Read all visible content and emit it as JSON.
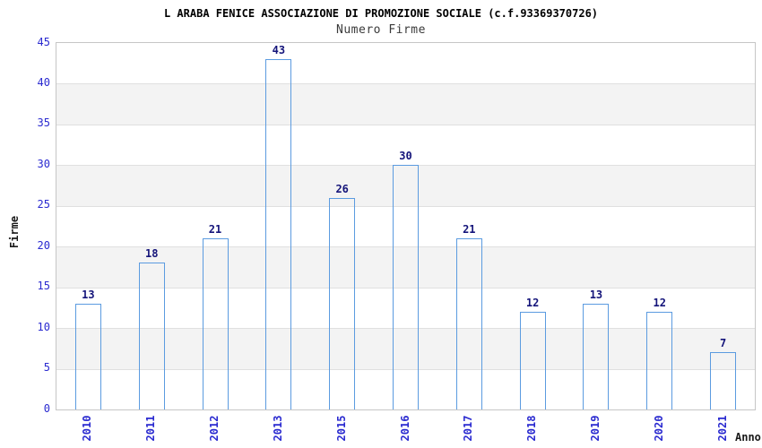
{
  "page": {
    "background": "#ffffff"
  },
  "chart_data": {
    "type": "bar",
    "title": "L ARABA FENICE ASSOCIAZIONE DI PROMOZIONE SOCIALE (c.f.93369370726)",
    "subtitle": "Numero Firme",
    "xlabel": "Anno",
    "ylabel": "Firme",
    "categories": [
      "2010",
      "2011",
      "2012",
      "2013",
      "2015",
      "2016",
      "2017",
      "2018",
      "2019",
      "2020",
      "2021"
    ],
    "values": [
      13,
      18,
      21,
      43,
      26,
      30,
      21,
      12,
      13,
      12,
      7
    ],
    "bar_value_labels": [
      13,
      18,
      21,
      43,
      26,
      30,
      21,
      12,
      13,
      12,
      7
    ],
    "yticks": [
      0,
      5,
      10,
      15,
      20,
      25,
      30,
      35,
      40,
      45
    ],
    "ylim": [
      0,
      45
    ],
    "grid": "horizontal gridlines with alternating white/gray bands",
    "legend_position": "none"
  },
  "colors": {
    "background": "#ffffff",
    "band_gray": "#f3f3f3",
    "gridline": "#e0e0e0",
    "plot_border": "#c6c6c6",
    "tick_label_blue": "#2a2ad0",
    "value_label_navy": "#14147a",
    "bar_dark_navy": "#14148a",
    "bar_highlight": "#b6b6de",
    "bar_edge_blue": "#5b9be0",
    "title_black": "#000000",
    "subtitle_gray": "#3a3a3a"
  }
}
